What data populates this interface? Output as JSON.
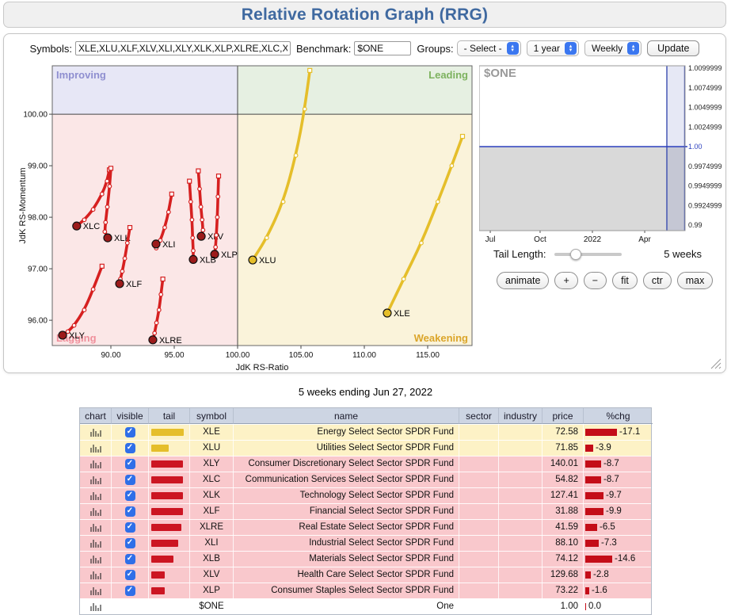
{
  "title": "Relative Rotation Graph (RRG)",
  "toolbar": {
    "symbols_label": "Symbols:",
    "symbols_value": "XLE,XLU,XLF,XLV,XLI,XLY,XLK,XLP,XLRE,XLC,XLB",
    "benchmark_label": "Benchmark:",
    "benchmark_value": "$ONE",
    "groups_label": "Groups:",
    "groups_selected": "- Select -",
    "period_selected": "1 year",
    "interval_selected": "Weekly",
    "update_label": "Update"
  },
  "rrg_chart": {
    "type": "scatter",
    "xlabel": "JdK RS-Ratio",
    "ylabel": "JdK RS-Momentum",
    "x_ticks": [
      90,
      95,
      100,
      105,
      110,
      115
    ],
    "x_tick_labels": [
      "90.00",
      "95.00",
      "100.00",
      "105.00",
      "110.00",
      "115.00"
    ],
    "y_ticks": [
      100,
      99,
      98,
      97,
      96
    ],
    "y_tick_labels": [
      "100.00",
      "99.00",
      "98.00",
      "97.00",
      "96.00"
    ],
    "xlim": [
      85.4,
      118.5
    ],
    "ylim": [
      95.5,
      100.94
    ],
    "quadrants": {
      "improving": {
        "label": "Improving",
        "color": "#e7e7f6",
        "label_color": "#8f8fd0"
      },
      "leading": {
        "label": "Leading",
        "color": "#e6f0e2",
        "label_color": "#7db25f"
      },
      "lagging": {
        "label": "Lagging",
        "color": "#fbe7e7",
        "label_color": "#ef8f9b"
      },
      "weakening": {
        "label": "Weakening",
        "color": "#faf3da",
        "label_color": "#dba52a"
      }
    },
    "tails": [
      {
        "symbol": "XLC",
        "color": "#d62020",
        "end_fill": "#9c1b1b",
        "points": [
          [
            89.88,
            98.92
          ],
          [
            89.7,
            98.7
          ],
          [
            89.3,
            98.45
          ],
          [
            88.6,
            98.15
          ],
          [
            87.9,
            97.95
          ],
          [
            87.3,
            97.83
          ]
        ]
      },
      {
        "symbol": "XLK",
        "color": "#d62020",
        "end_fill": "#9c1b1b",
        "points": [
          [
            90.0,
            98.95
          ],
          [
            89.9,
            98.6
          ],
          [
            89.72,
            98.2
          ],
          [
            89.58,
            97.9
          ],
          [
            89.52,
            97.72
          ],
          [
            89.75,
            97.6
          ]
        ]
      },
      {
        "symbol": "XLI",
        "color": "#d62020",
        "end_fill": "#9c1b1b",
        "points": [
          [
            94.8,
            98.45
          ],
          [
            94.55,
            98.1
          ],
          [
            94.25,
            97.8
          ],
          [
            93.9,
            97.55
          ],
          [
            93.58,
            97.4
          ],
          [
            93.56,
            97.48
          ]
        ]
      },
      {
        "symbol": "XLV",
        "color": "#d62020",
        "end_fill": "#9c1b1b",
        "points": [
          [
            96.9,
            98.9
          ],
          [
            97.0,
            98.55
          ],
          [
            97.1,
            98.2
          ],
          [
            97.2,
            97.95
          ],
          [
            97.27,
            97.75
          ],
          [
            97.13,
            97.63
          ]
        ]
      },
      {
        "symbol": "XLP",
        "color": "#d62020",
        "end_fill": "#9c1b1b",
        "points": [
          [
            98.5,
            98.8
          ],
          [
            98.45,
            98.4
          ],
          [
            98.4,
            98.0
          ],
          [
            98.32,
            97.65
          ],
          [
            98.26,
            97.42
          ],
          [
            98.19,
            97.28
          ]
        ]
      },
      {
        "symbol": "XLB",
        "color": "#d62020",
        "end_fill": "#9c1b1b",
        "points": [
          [
            96.2,
            98.7
          ],
          [
            96.3,
            98.3
          ],
          [
            96.4,
            97.95
          ],
          [
            96.45,
            97.6
          ],
          [
            96.5,
            97.35
          ],
          [
            96.5,
            97.18
          ]
        ]
      },
      {
        "symbol": "XLF",
        "color": "#d62020",
        "end_fill": "#9c1b1b",
        "points": [
          [
            91.5,
            97.8
          ],
          [
            91.3,
            97.5
          ],
          [
            91.1,
            97.2
          ],
          [
            90.9,
            96.95
          ],
          [
            90.75,
            96.8
          ],
          [
            90.69,
            96.71
          ]
        ]
      },
      {
        "symbol": "XLY",
        "color": "#d62020",
        "end_fill": "#9c1b1b",
        "points": [
          [
            89.3,
            97.05
          ],
          [
            88.6,
            96.6
          ],
          [
            87.9,
            96.2
          ],
          [
            87.1,
            95.9
          ],
          [
            86.6,
            95.78
          ],
          [
            86.19,
            95.71
          ]
        ]
      },
      {
        "symbol": "XLRE",
        "color": "#d62020",
        "end_fill": "#9c1b1b",
        "points": [
          [
            94.1,
            96.8
          ],
          [
            93.95,
            96.5
          ],
          [
            93.8,
            96.2
          ],
          [
            93.6,
            95.95
          ],
          [
            93.45,
            95.75
          ],
          [
            93.31,
            95.62
          ]
        ]
      },
      {
        "symbol": "XLU",
        "color": "#e5be2a",
        "end_fill": "#e5be2a",
        "points": [
          [
            105.7,
            100.85
          ],
          [
            105.3,
            100.1
          ],
          [
            104.6,
            99.2
          ],
          [
            103.6,
            98.3
          ],
          [
            102.3,
            97.6
          ],
          [
            101.19,
            97.17
          ]
        ]
      },
      {
        "symbol": "XLE",
        "color": "#e5be2a",
        "end_fill": "#e5be2a",
        "points": [
          [
            117.75,
            99.57
          ],
          [
            116.9,
            99.0
          ],
          [
            115.8,
            98.3
          ],
          [
            114.5,
            97.5
          ],
          [
            113.1,
            96.8
          ],
          [
            111.81,
            96.14
          ]
        ]
      }
    ]
  },
  "mini_chart": {
    "symbol_label": "$ONE",
    "y_tick_labels": [
      "1.0099999",
      "1.0074999",
      "1.0049999",
      "1.0024999",
      "1.00",
      "0.9974999",
      "0.9949999",
      "0.9924999",
      "0.99"
    ],
    "highlight_tick": "1.00",
    "x_tick_labels": [
      "Jul",
      "Oct",
      "2022",
      "Apr"
    ],
    "x_tick_pos": [
      0.054,
      0.296,
      0.55,
      0.804
    ],
    "line_value": 1.0,
    "line_color": "#2b3fbe",
    "fill_color": "#d9d9d9",
    "band_color": "#3a4db0"
  },
  "controls": {
    "tail_length_label": "Tail Length:",
    "tail_length_value": 5,
    "tail_length_text": "5 weeks",
    "buttons": [
      {
        "label": "animate",
        "name": "animate-button"
      },
      {
        "label": "+",
        "name": "zoom-in-button"
      },
      {
        "label": "−",
        "name": "zoom-out-button"
      },
      {
        "label": "fit",
        "name": "fit-button"
      },
      {
        "label": "ctr",
        "name": "center-button"
      },
      {
        "label": "max",
        "name": "max-button"
      }
    ]
  },
  "table": {
    "caption": "5 weeks ending Jun 27, 2022",
    "columns": [
      "chart",
      "visible",
      "tail",
      "symbol",
      "name",
      "sector",
      "industry",
      "price",
      "%chg"
    ],
    "rows": [
      {
        "symbol": "XLE",
        "name": "Energy Select Sector SPDR Fund",
        "sector": "",
        "industry": "",
        "price": "72.58",
        "chg": "-17.1",
        "chg_bar": 40,
        "tail_color": "#e5be2a",
        "tail_bar": 41,
        "row_color": "#fdf2c6",
        "visible": true
      },
      {
        "symbol": "XLU",
        "name": "Utilities Select Sector SPDR Fund",
        "sector": "",
        "industry": "",
        "price": "71.85",
        "chg": "-3.9",
        "chg_bar": 10,
        "tail_color": "#e5be2a",
        "tail_bar": 22,
        "row_color": "#fdf2c6",
        "visible": true
      },
      {
        "symbol": "XLY",
        "name": "Consumer Discretionary Select Sector SPDR Fund",
        "sector": "",
        "industry": "",
        "price": "140.01",
        "chg": "-8.7",
        "chg_bar": 20,
        "tail_color": "#cc1522",
        "tail_bar": 40,
        "row_color": "#f9c8cc",
        "visible": true
      },
      {
        "symbol": "XLC",
        "name": "Communication Services Select Sector SPDR Fund",
        "sector": "",
        "industry": "",
        "price": "54.82",
        "chg": "-8.7",
        "chg_bar": 20,
        "tail_color": "#cc1522",
        "tail_bar": 40,
        "row_color": "#f9c8cc",
        "visible": true
      },
      {
        "symbol": "XLK",
        "name": "Technology Select Sector SPDR Fund",
        "sector": "",
        "industry": "",
        "price": "127.41",
        "chg": "-9.7",
        "chg_bar": 23,
        "tail_color": "#cc1522",
        "tail_bar": 40,
        "row_color": "#f9c8cc",
        "visible": true
      },
      {
        "symbol": "XLF",
        "name": "Financial Select Sector SPDR Fund",
        "sector": "",
        "industry": "",
        "price": "31.88",
        "chg": "-9.9",
        "chg_bar": 23,
        "tail_color": "#cc1522",
        "tail_bar": 40,
        "row_color": "#f9c8cc",
        "visible": true
      },
      {
        "symbol": "XLRE",
        "name": "Real Estate Select Sector SPDR Fund",
        "sector": "",
        "industry": "",
        "price": "41.59",
        "chg": "-6.5",
        "chg_bar": 15,
        "tail_color": "#cc1522",
        "tail_bar": 38,
        "row_color": "#f9c8cc",
        "visible": true
      },
      {
        "symbol": "XLI",
        "name": "Industrial Select Sector SPDR Fund",
        "sector": "",
        "industry": "",
        "price": "88.10",
        "chg": "-7.3",
        "chg_bar": 17,
        "tail_color": "#cc1522",
        "tail_bar": 34,
        "row_color": "#f9c8cc",
        "visible": true
      },
      {
        "symbol": "XLB",
        "name": "Materials Select Sector SPDR Fund",
        "sector": "",
        "industry": "",
        "price": "74.12",
        "chg": "-14.6",
        "chg_bar": 34,
        "tail_color": "#cc1522",
        "tail_bar": 28,
        "row_color": "#f9c8cc",
        "visible": true
      },
      {
        "symbol": "XLV",
        "name": "Health Care Select Sector SPDR Fund",
        "sector": "",
        "industry": "",
        "price": "129.68",
        "chg": "-2.8",
        "chg_bar": 7,
        "tail_color": "#cc1522",
        "tail_bar": 17,
        "row_color": "#f9c8cc",
        "visible": true
      },
      {
        "symbol": "XLP",
        "name": "Consumer Staples Select Sector SPDR Fund",
        "sector": "",
        "industry": "",
        "price": "73.22",
        "chg": "-1.6",
        "chg_bar": 5,
        "tail_color": "#cc1522",
        "tail_bar": 17,
        "row_color": "#f9c8cc",
        "visible": true
      },
      {
        "symbol": "$ONE",
        "name": "One",
        "sector": "",
        "industry": "",
        "price": "1.00",
        "chg": "0.0",
        "chg_bar": 1,
        "tail_color": "",
        "tail_bar": 0,
        "row_color": "#ffffff",
        "visible": null
      }
    ]
  }
}
